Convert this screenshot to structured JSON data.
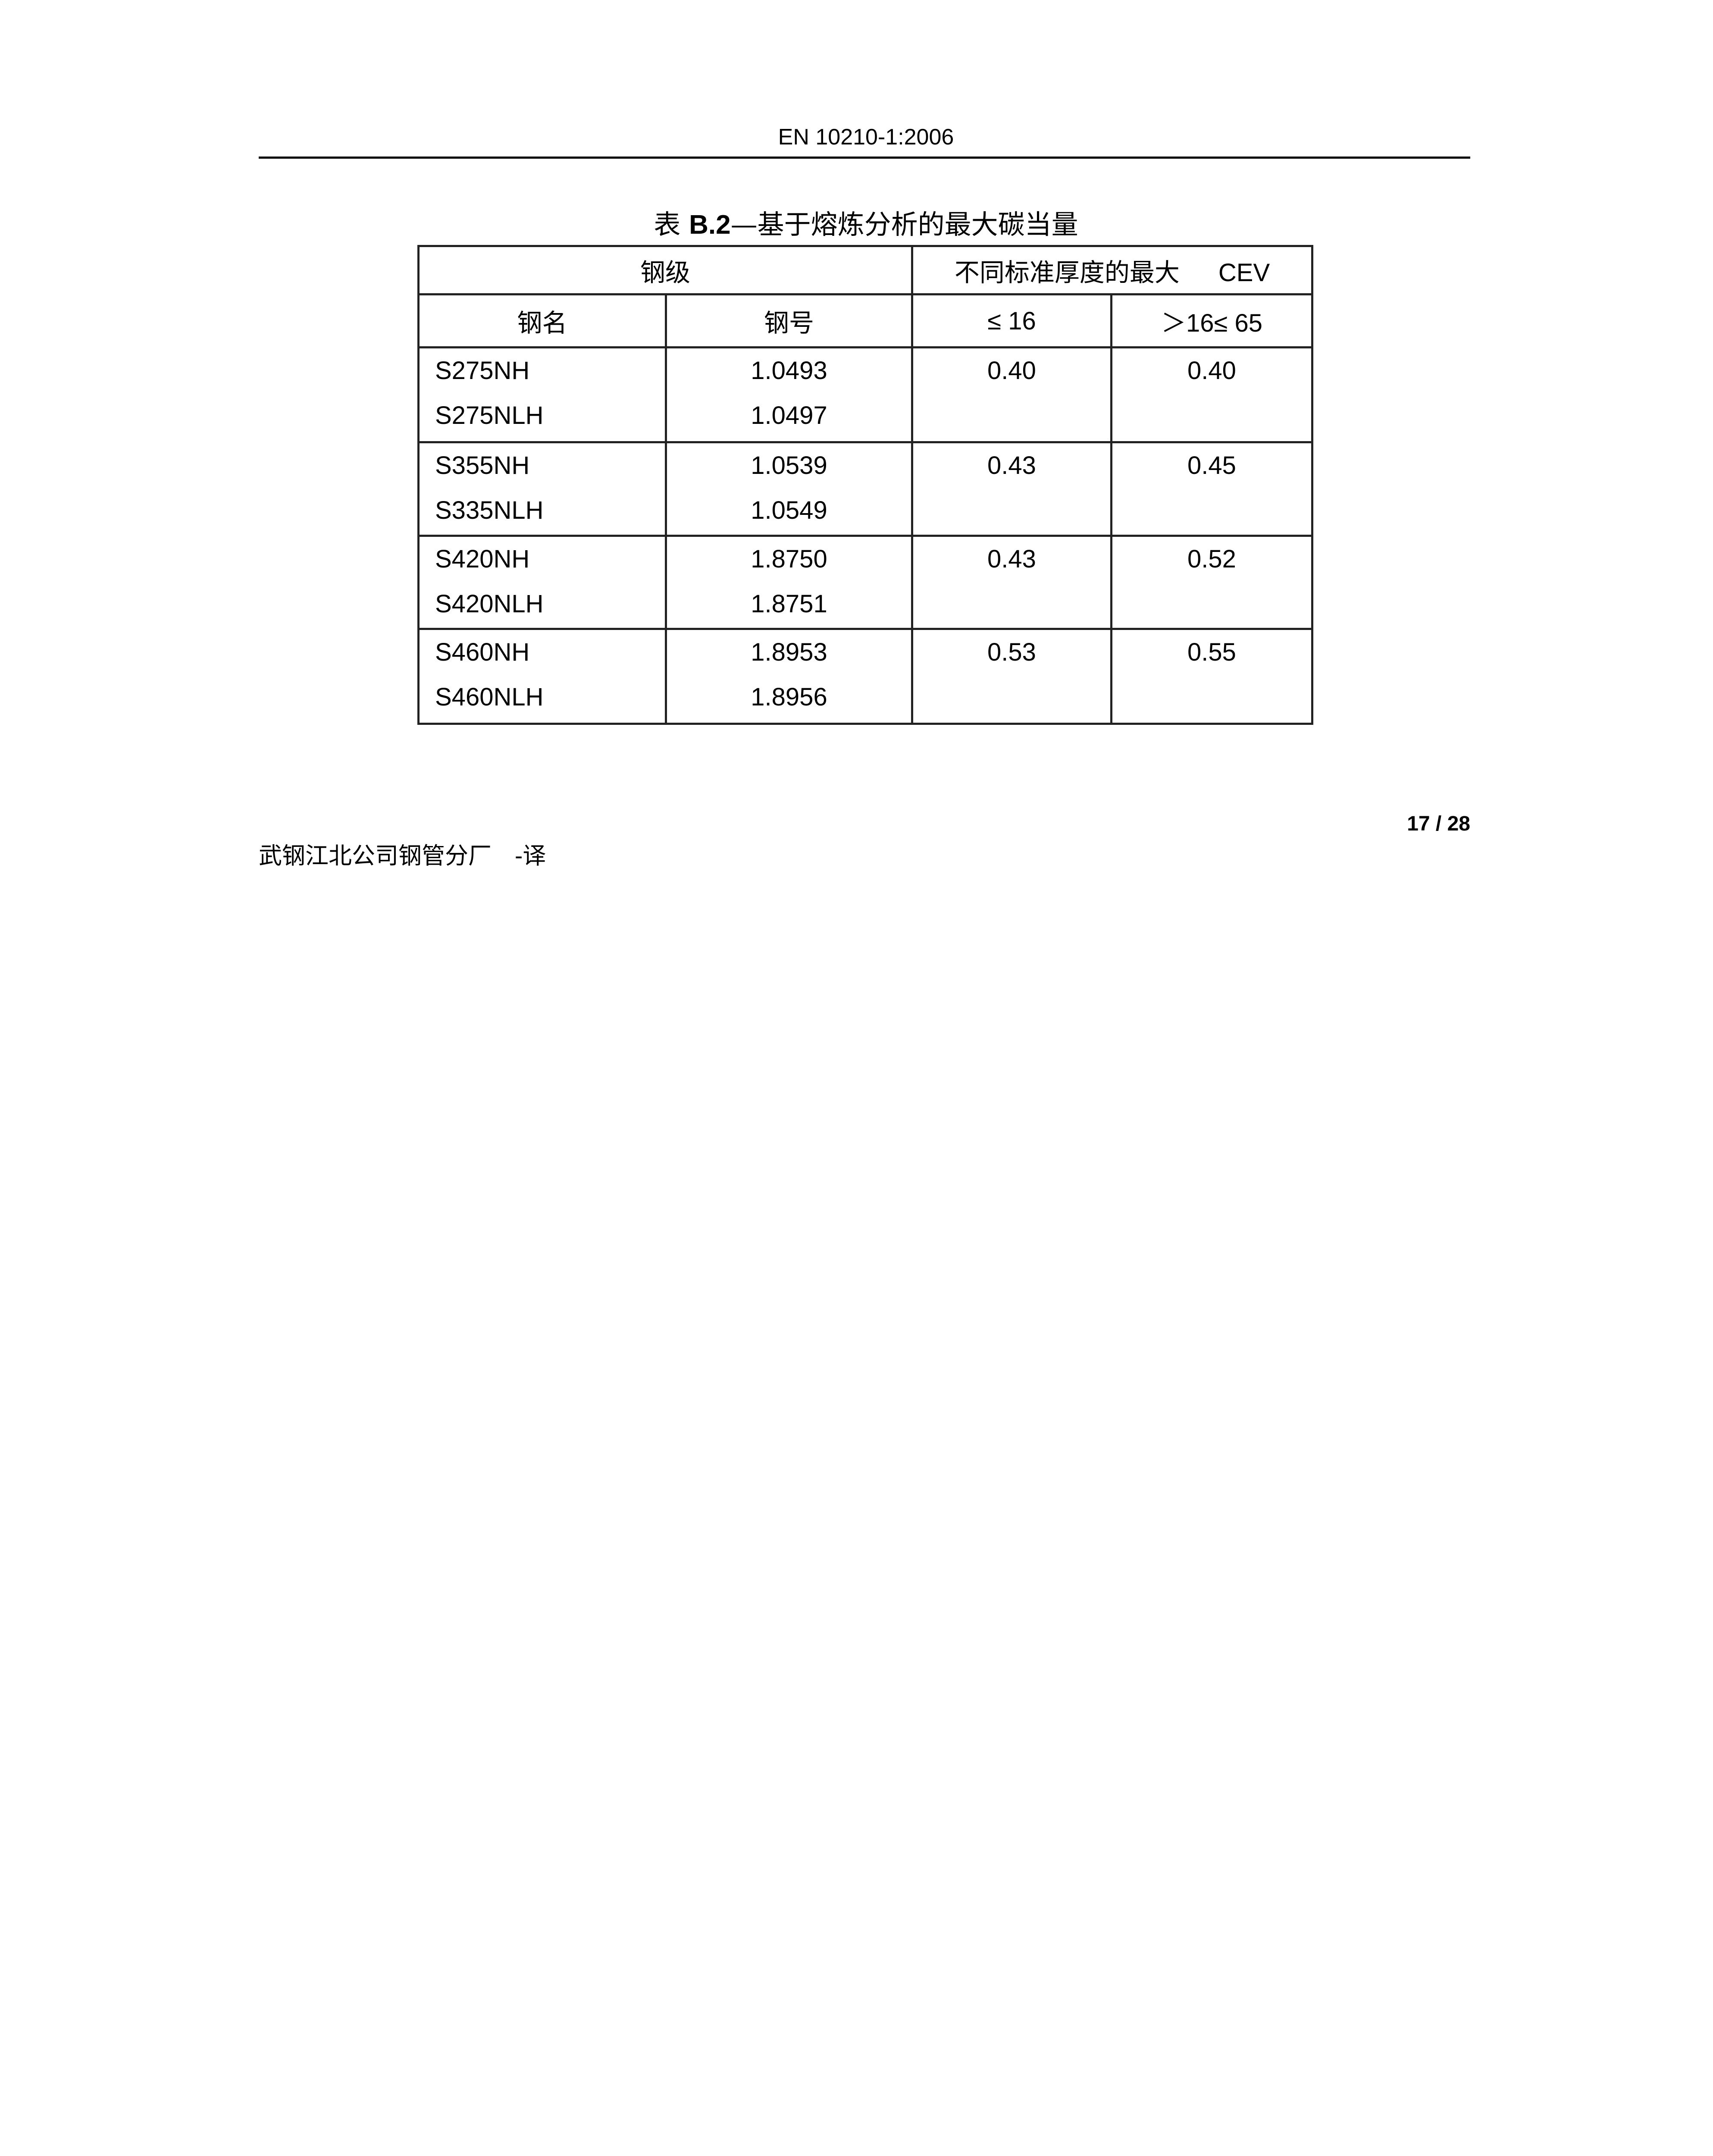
{
  "header": {
    "title": "EN 10210-1:2006"
  },
  "table": {
    "caption_prefix": "表 ",
    "caption_id": "B.2",
    "caption_title": "—基于熔炼分析的最大碳当量",
    "group_header_grade": "钢级",
    "group_header_cev_text": "不同标准厚度的最大",
    "group_header_cev_abbr": "CEV",
    "col_name": "钢名",
    "col_number": "钢号",
    "col_thk1": "≤ 16",
    "col_thk2": "＞16≤ 65",
    "rows": [
      {
        "names": [
          "S275NH",
          "S275NLH"
        ],
        "numbers": [
          "1.0493",
          "1.0497"
        ],
        "cev1": "0.40",
        "cev2": "0.40"
      },
      {
        "names": [
          "S355NH",
          "S335NLH"
        ],
        "numbers": [
          "1.0539",
          "1.0549"
        ],
        "cev1": "0.43",
        "cev2": "0.45"
      },
      {
        "names": [
          "S420NH",
          "S420NLH"
        ],
        "numbers": [
          "1.8750",
          "1.8751"
        ],
        "cev1": "0.43",
        "cev2": "0.52"
      },
      {
        "names": [
          "S460NH",
          "S460NLH"
        ],
        "numbers": [
          "1.8953",
          "1.8956"
        ],
        "cev1": "0.53",
        "cev2": "0.55"
      }
    ]
  },
  "footer": {
    "page": "17 / 28",
    "credit": "武钢江北公司钢管分厂　-译"
  }
}
